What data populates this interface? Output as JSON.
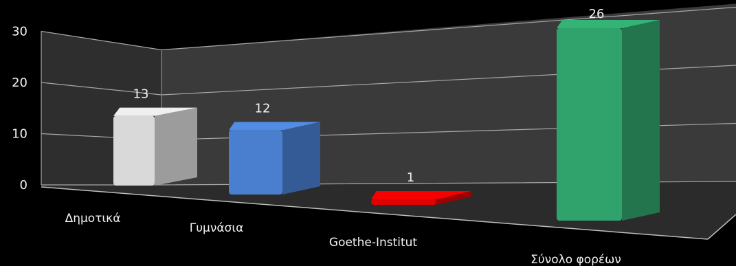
{
  "chart_data": {
    "type": "bar",
    "categories": [
      "Δημοτικά",
      "Γυμνάσια",
      "Goethe-Institut",
      "Σύνολο φορέων"
    ],
    "values": [
      13,
      12,
      1,
      26
    ],
    "yticks": [
      0,
      10,
      20,
      30
    ],
    "ylim": [
      0,
      30
    ],
    "grid": true,
    "colors": {
      "bars": [
        "#d9d9d9",
        "#4a7fd0",
        "#e00000",
        "#2fa36b"
      ],
      "background": "#000000",
      "wall": "#3a3a3a",
      "floor": "#2b2b2b",
      "text": "#f2f2f2"
    }
  }
}
